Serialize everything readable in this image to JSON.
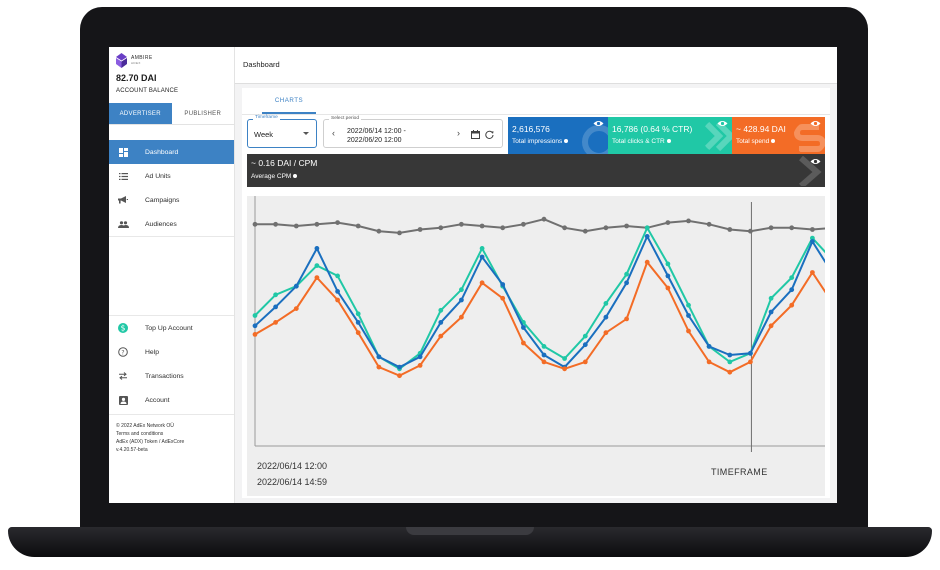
{
  "brand": {
    "name": "AMBIRE",
    "sub": "ADEX"
  },
  "account": {
    "balance": "82.70 DAI",
    "balance_label": "ACCOUNT BALANCE"
  },
  "role_tabs": [
    "ADVERTISER",
    "PUBLISHER"
  ],
  "nav": [
    {
      "label": "Dashboard",
      "icon": "dashboard-icon",
      "active": true
    },
    {
      "label": "Ad Units",
      "icon": "list-icon"
    },
    {
      "label": "Campaigns",
      "icon": "megaphone-icon"
    },
    {
      "label": "Audiences",
      "icon": "people-icon"
    }
  ],
  "nav_bottom": [
    {
      "label": "Top Up Account",
      "icon": "dollar-circle-icon"
    },
    {
      "label": "Help",
      "icon": "help-circle-icon"
    },
    {
      "label": "Transactions",
      "icon": "swap-arrows-icon"
    },
    {
      "label": "Account",
      "icon": "account-box-icon"
    }
  ],
  "footer": {
    "copyright": "© 2022 AdEx Network OÜ",
    "terms": "Terms and conditions",
    "token": "AdEx (ADX) Token / AdExCore",
    "version": "v.4.20.57-beta"
  },
  "topbar": {
    "title": "Dashboard"
  },
  "tabs": {
    "charts": "CHARTS"
  },
  "timeframe": {
    "label": "Timeframe",
    "value": "Week"
  },
  "period": {
    "label": "Select period",
    "from": "2022/06/14 12:00 -",
    "to": "2022/06/20 12:00"
  },
  "stats": {
    "impressions": {
      "value": "2,616,576",
      "label": "Total impressions",
      "color": "#1a6fbf"
    },
    "clicks": {
      "value": "16,786 (0.64 % CTR)",
      "label": "Total clicks & CTR",
      "color": "#20c8a6"
    },
    "spend": {
      "value": "~ 428.94 DAI",
      "label": "Total spend",
      "color": "#f36c26"
    }
  },
  "cpm": {
    "value": "~ 0.16 DAI / CPM",
    "label": "Average CPM",
    "color": "#373737"
  },
  "chart": {
    "x_start_line1": "2022/06/14 12:00",
    "x_start_line2": "2022/06/14 14:59",
    "x_label": "TIMEFRAME"
  },
  "chart_data": {
    "type": "line",
    "x_points": 29,
    "series": [
      {
        "color": "#707070",
        "values": [
          0.94,
          0.94,
          0.93,
          0.94,
          0.95,
          0.93,
          0.9,
          0.89,
          0.91,
          0.92,
          0.94,
          0.93,
          0.92,
          0.94,
          0.97,
          0.92,
          0.9,
          0.92,
          0.93,
          0.92,
          0.95,
          0.96,
          0.94,
          0.91,
          0.9,
          0.92,
          0.92,
          0.91,
          0.92
        ]
      },
      {
        "color": "#20c8a6",
        "values": [
          0.41,
          0.53,
          0.58,
          0.7,
          0.64,
          0.42,
          0.17,
          0.1,
          0.19,
          0.44,
          0.56,
          0.8,
          0.58,
          0.37,
          0.23,
          0.16,
          0.29,
          0.48,
          0.65,
          0.92,
          0.71,
          0.47,
          0.23,
          0.14,
          0.19,
          0.51,
          0.63,
          0.86,
          0.73
        ]
      },
      {
        "color": "#1a6fbf",
        "values": [
          0.35,
          0.46,
          0.58,
          0.8,
          0.55,
          0.37,
          0.17,
          0.11,
          0.17,
          0.37,
          0.5,
          0.75,
          0.59,
          0.34,
          0.18,
          0.11,
          0.24,
          0.4,
          0.6,
          0.87,
          0.64,
          0.41,
          0.23,
          0.18,
          0.19,
          0.43,
          0.56,
          0.84,
          0.65
        ]
      },
      {
        "color": "#f36c26",
        "values": [
          0.3,
          0.37,
          0.45,
          0.63,
          0.5,
          0.31,
          0.11,
          0.06,
          0.12,
          0.29,
          0.4,
          0.6,
          0.51,
          0.25,
          0.14,
          0.1,
          0.14,
          0.31,
          0.39,
          0.72,
          0.57,
          0.32,
          0.14,
          0.08,
          0.14,
          0.35,
          0.47,
          0.66,
          0.48
        ]
      }
    ]
  }
}
